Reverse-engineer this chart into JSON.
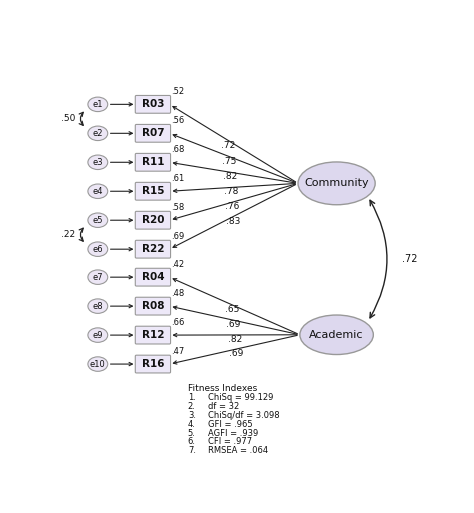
{
  "error_nodes_comm": [
    "e1",
    "e2",
    "e3",
    "e4",
    "e5",
    "e6"
  ],
  "error_nodes_acad": [
    "e7",
    "e8",
    "e9",
    "e10"
  ],
  "indicator_boxes_community": [
    "R03",
    "R07",
    "R11",
    "R15",
    "R20",
    "R22"
  ],
  "indicator_boxes_academic": [
    "R04",
    "R08",
    "R12",
    "R16"
  ],
  "community_loadings": [
    ".72",
    ".75",
    ".82",
    ".78",
    ".76",
    ".83"
  ],
  "academic_loadings": [
    ".65",
    ".69",
    ".82",
    ".69"
  ],
  "error_variances_community": [
    ".52",
    ".56",
    ".68",
    ".61",
    ".58",
    ".69"
  ],
  "error_variances_academic": [
    ".42",
    ".48",
    ".66",
    ".47"
  ],
  "e1_e2_cov": ".50",
  "e5_e6_cov": ".22",
  "community_academic_cov": ".72",
  "community_label": "Community",
  "academic_label": "Academic",
  "fitness_title": "Fitness Indexes",
  "fitness_lines": [
    [
      "1.",
      "ChiSq = 99.129"
    ],
    [
      "2.",
      "df = 32"
    ],
    [
      "3.",
      "ChiSq/df = 3.098"
    ],
    [
      "4.",
      "GFI = .965"
    ],
    [
      "5.",
      "AGFI = .939"
    ],
    [
      "6.",
      "CFI = .977"
    ],
    [
      "7.",
      "RMSEA = .064"
    ]
  ],
  "bg_color": "#ffffff",
  "ellipse_fill": "#ece6f5",
  "ellipse_edge": "#999999",
  "box_fill": "#ede8f8",
  "box_edge": "#999999",
  "latent_fill": "#ddd8ee",
  "latent_edge": "#999999",
  "arrow_color": "#222222",
  "text_color": "#111111"
}
